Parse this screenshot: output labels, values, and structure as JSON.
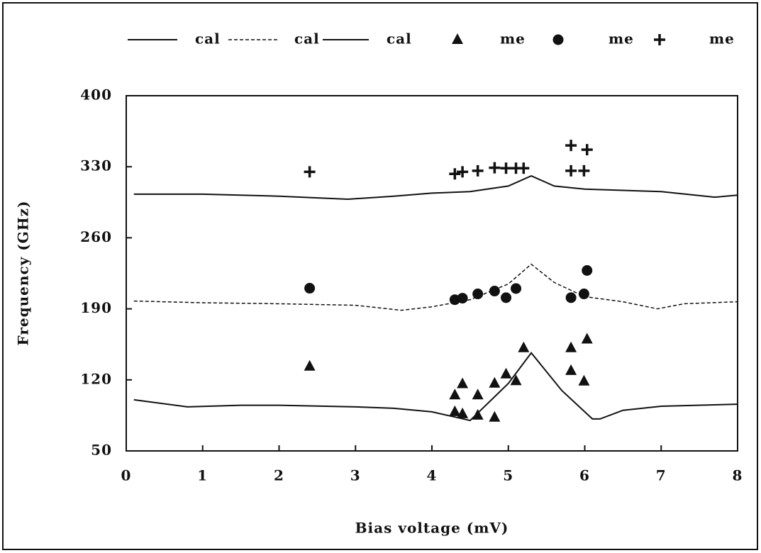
{
  "chart_data": {
    "type": "scatter",
    "xlabel": "Bias voltage (mV)",
    "ylabel": "Frequency (GHz)",
    "xlim": [
      0,
      8
    ],
    "xticks": [
      0,
      1,
      2,
      3,
      4,
      5,
      6,
      7,
      8
    ],
    "ylim": [
      50,
      400
    ],
    "yticks": [
      50,
      120,
      190,
      260,
      330,
      400
    ],
    "series": [
      {
        "name": "cal",
        "kind": "line",
        "line_style": "solid",
        "color": "#111",
        "x": [
          0.1,
          1,
          2,
          2.9,
          3.5,
          4,
          4.5,
          5,
          5.3,
          5.6,
          6,
          7,
          7.7,
          8
        ],
        "values": [
          303,
          303,
          301,
          298,
          301,
          304,
          305.5,
          311,
          321,
          311,
          308,
          305.5,
          300,
          302
        ]
      },
      {
        "name": "cal",
        "kind": "line",
        "line_style": "dashed",
        "color": "#111",
        "x": [
          0.1,
          1,
          2,
          3,
          3.6,
          4,
          4.5,
          5,
          5.3,
          5.6,
          6,
          6.5,
          6.95,
          7.3,
          8
        ],
        "values": [
          197.7,
          196,
          195,
          193.5,
          188.6,
          192,
          199,
          214.5,
          234,
          216,
          202,
          197,
          190,
          195,
          197
        ]
      },
      {
        "name": "cal",
        "kind": "line",
        "line_style": "solid",
        "color": "#111",
        "x": [
          0.1,
          0.8,
          1.5,
          2,
          3,
          3.5,
          4,
          4.5,
          5,
          5.3,
          5.7,
          6.1,
          6.2,
          6.5,
          7,
          8
        ],
        "values": [
          100.4,
          93.4,
          95,
          95,
          93.4,
          92,
          88.5,
          80,
          116.5,
          146.6,
          109.5,
          81.5,
          81.5,
          90,
          94,
          96
        ]
      },
      {
        "name": "me",
        "kind": "points",
        "marker": "triangle",
        "color": "#111",
        "x": [
          2.4,
          4.3,
          4.4,
          4.6,
          4.3,
          4.4,
          4.6,
          4.82,
          4.82,
          4.97,
          5.1,
          5.2,
          5.82,
          5.82,
          5.99,
          6.03
        ],
        "values": [
          133.3,
          105,
          116,
          105,
          88.5,
          86.4,
          85,
          83,
          116.5,
          125.6,
          119,
          151.5,
          151.5,
          129,
          118.6,
          160
        ]
      },
      {
        "name": "me",
        "kind": "points",
        "marker": "circle",
        "color": "#111",
        "x": [
          2.4,
          4.3,
          4.4,
          4.6,
          4.82,
          4.97,
          5.1,
          5.82,
          5.99,
          6.03
        ],
        "values": [
          210.3,
          199,
          200.5,
          204.7,
          207.5,
          201,
          210,
          201,
          204.7,
          227.8
        ]
      },
      {
        "name": "me",
        "kind": "points",
        "marker": "plus",
        "color": "#111",
        "x": [
          2.4,
          4.3,
          4.4,
          4.6,
          4.82,
          4.97,
          5.1,
          5.2,
          5.82,
          5.99,
          5.82,
          6.03
        ],
        "values": [
          325,
          323,
          325,
          326,
          329,
          328.6,
          328.6,
          328.6,
          326,
          326,
          351,
          346.8
        ]
      }
    ]
  }
}
